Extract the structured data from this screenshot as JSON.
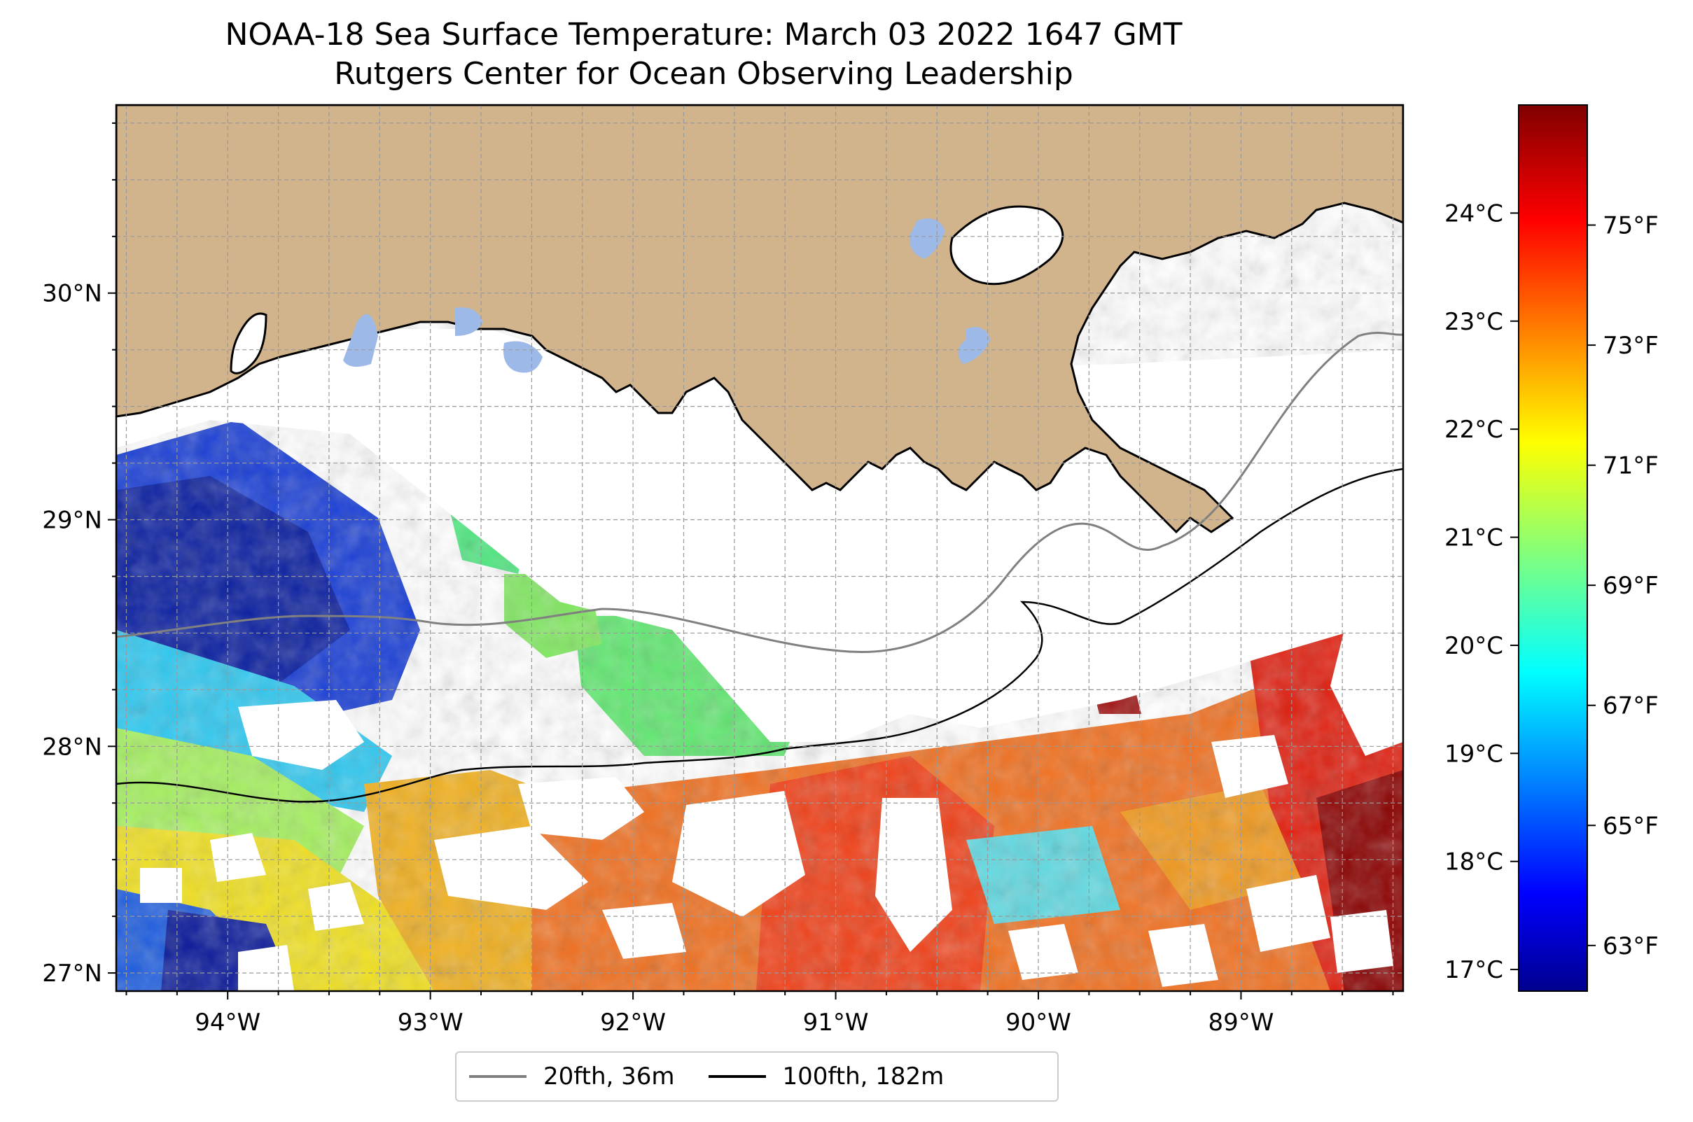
{
  "title": "NOAA-18 Sea Surface Temperature: March 03 2022 1647 GMT",
  "subtitle": "Rutgers Center for Ocean Observing Leadership",
  "map": {
    "lon_range": [
      -94.55,
      -88.2
    ],
    "lat_range": [
      26.92,
      30.83
    ],
    "lon_ticks": [
      "94°W",
      "93°W",
      "92°W",
      "91°W",
      "90°W",
      "89°W"
    ],
    "lon_tick_values": [
      -94,
      -93,
      -92,
      -91,
      -90,
      -89
    ],
    "lat_ticks": [
      "27°N",
      "28°N",
      "29°N",
      "30°N"
    ],
    "lat_tick_values": [
      27,
      28,
      29,
      30
    ],
    "grid": true,
    "land_color": "#d2b48c",
    "lake_color": "#9db9e8"
  },
  "colorbar": {
    "celsius_ticks": [
      "17°C",
      "18°C",
      "19°C",
      "20°C",
      "21°C",
      "22°C",
      "23°C",
      "24°C"
    ],
    "celsius_values": [
      17,
      18,
      19,
      20,
      21,
      22,
      23,
      24
    ],
    "fahrenheit_ticks": [
      "63°F",
      "65°F",
      "67°F",
      "69°F",
      "71°F",
      "73°F",
      "75°F"
    ],
    "fahrenheit_values": [
      63,
      65,
      67,
      69,
      71,
      73,
      75
    ],
    "range_celsius": [
      16.8,
      25.0
    ],
    "colormap": "jet"
  },
  "legend": {
    "items": [
      {
        "label": "20fth, 36m",
        "color": "#808080"
      },
      {
        "label": "100fth, 182m",
        "color": "#000000"
      }
    ],
    "position": "bottom-center"
  }
}
